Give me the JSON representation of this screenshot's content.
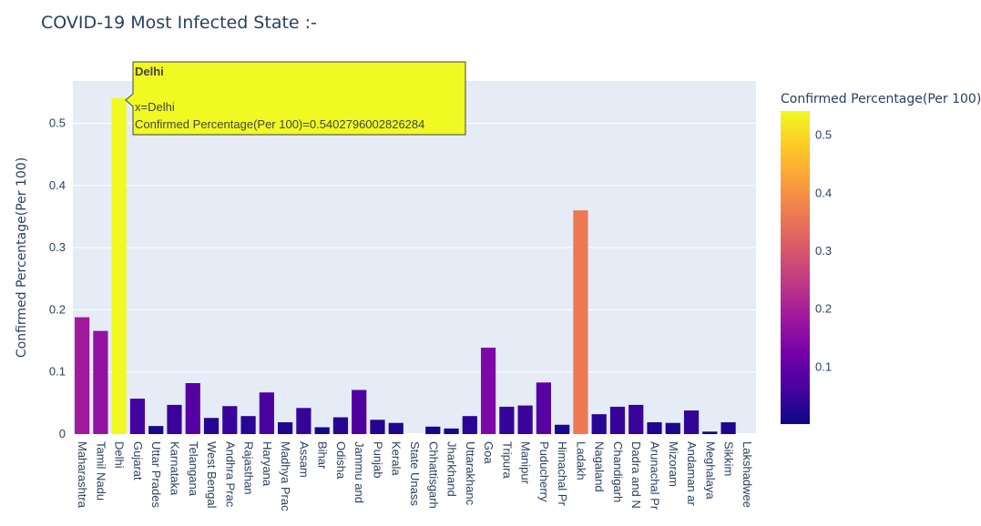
{
  "title": "COVID-19 Most Infected State :-",
  "chart_data": {
    "type": "bar",
    "title": "COVID-19 Most Infected State :-",
    "xlabel": "",
    "ylabel": "Confirmed Percentage(Per 100)",
    "ylim": [
      0,
      0.57
    ],
    "yticks": [
      "0",
      "0.1",
      "0.2",
      "0.3",
      "0.4",
      "0.5"
    ],
    "categories": [
      "Maharashtra",
      "Tamil Nadu",
      "Delhi",
      "Gujarat",
      "Uttar Prades",
      "Karnataka",
      "Telangana",
      "West Bengal",
      "Andhra Prac",
      "Rajasthan",
      "Haryana",
      "Madhya Prac",
      "Assam",
      "Bihar",
      "Odisha",
      "Jammu and",
      "Punjab",
      "Kerala",
      "State Unass",
      "Chhattisgarh",
      "Jharkhand",
      "Uttarakhanc",
      "Goa",
      "Tripura",
      "Manipur",
      "Puducherry",
      "Himachal Pr",
      "Ladakh",
      "Nagaland",
      "Chandigarh",
      "Dadra and N",
      "Arunachal Pr",
      "Mizoram",
      "Andaman ar",
      "Meghalaya",
      "Sikkim",
      "Lakshadwee"
    ],
    "values": [
      0.188,
      0.166,
      0.5402796002826284,
      0.057,
      0.013,
      0.047,
      0.082,
      0.026,
      0.045,
      0.029,
      0.067,
      0.019,
      0.042,
      0.011,
      0.027,
      0.071,
      0.023,
      0.018,
      0,
      0.012,
      0.009,
      0.029,
      0.139,
      0.044,
      0.046,
      0.083,
      0.015,
      0.36,
      0.032,
      0.044,
      0.047,
      0.019,
      0.018,
      0.038,
      0.004,
      0.019,
      0
    ],
    "colorscale": {
      "title": "Confirmed Percentage(Per 100)",
      "ticks": [
        "0.1",
        "0.2",
        "0.3",
        "0.4",
        "0.5"
      ],
      "range": [
        0,
        0.5402796002826284
      ],
      "colors": [
        "#0d0887",
        "#46039f",
        "#7201a8",
        "#9c179e",
        "#bd3786",
        "#d8576b",
        "#ed7953",
        "#fb9f3a",
        "#fdca26",
        "#f0f921"
      ]
    }
  },
  "tooltip": {
    "header": "Delhi",
    "line1": "x=Delhi",
    "line2": "Confirmed Percentage(Per 100)=0.5402796002826284"
  }
}
